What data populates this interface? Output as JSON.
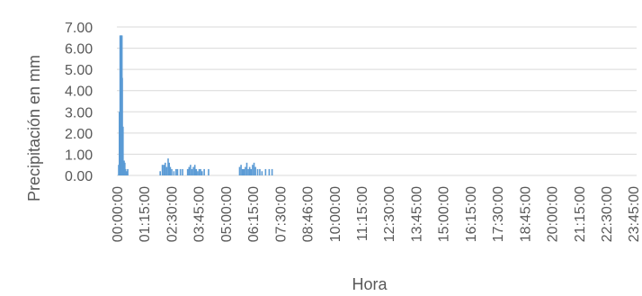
{
  "chart_data": {
    "type": "bar",
    "xlabel": "Hora",
    "ylabel": "Precipitación en mm",
    "ylim": [
      0,
      7
    ],
    "grid": true,
    "y_ticks": [
      "0.00",
      "1.00",
      "2.00",
      "3.00",
      "4.00",
      "5.00",
      "6.00",
      "7.00"
    ],
    "x_ticks": [
      "00:00:00",
      "01:15:00",
      "02:30:00",
      "03:45:00",
      "05:00:00",
      "06:15:00",
      "07:30:00",
      "08:46:00",
      "10:00:00",
      "11:15:00",
      "12:30:00",
      "13:45:00",
      "15:00:00",
      "16:15:00",
      "17:30:00",
      "18:45:00",
      "20:00:00",
      "21:15:00",
      "22:30:00",
      "23:45:00"
    ],
    "x_range_minutes": [
      0,
      1440
    ],
    "x_unit": "minutes since 00:00:00",
    "series": [
      {
        "color": "#5b9bd5",
        "points": [
          {
            "x": 5,
            "y": 0.5
          },
          {
            "x": 7,
            "y": 3.0
          },
          {
            "x": 8,
            "y": 2.3
          },
          {
            "x": 9,
            "y": 6.6
          },
          {
            "x": 10,
            "y": 6.6
          },
          {
            "x": 11,
            "y": 6.6
          },
          {
            "x": 12,
            "y": 6.6
          },
          {
            "x": 13,
            "y": 6.6
          },
          {
            "x": 14,
            "y": 6.6
          },
          {
            "x": 15,
            "y": 4.6
          },
          {
            "x": 17,
            "y": 2.3
          },
          {
            "x": 20,
            "y": 0.7
          },
          {
            "x": 22,
            "y": 0.6
          },
          {
            "x": 24,
            "y": 0.3
          },
          {
            "x": 27,
            "y": 0.2
          },
          {
            "x": 30,
            "y": 0.3
          },
          {
            "x": 120,
            "y": 0.2
          },
          {
            "x": 126,
            "y": 0.5
          },
          {
            "x": 130,
            "y": 0.5
          },
          {
            "x": 134,
            "y": 0.6
          },
          {
            "x": 138,
            "y": 0.4
          },
          {
            "x": 142,
            "y": 0.8
          },
          {
            "x": 145,
            "y": 0.6
          },
          {
            "x": 148,
            "y": 0.4
          },
          {
            "x": 152,
            "y": 0.3
          },
          {
            "x": 158,
            "y": 0.2
          },
          {
            "x": 164,
            "y": 0.3
          },
          {
            "x": 168,
            "y": 0.3
          },
          {
            "x": 176,
            "y": 0.3
          },
          {
            "x": 182,
            "y": 0.3
          },
          {
            "x": 196,
            "y": 0.3
          },
          {
            "x": 200,
            "y": 0.4
          },
          {
            "x": 204,
            "y": 0.5
          },
          {
            "x": 208,
            "y": 0.3
          },
          {
            "x": 212,
            "y": 0.4
          },
          {
            "x": 216,
            "y": 0.5
          },
          {
            "x": 220,
            "y": 0.3
          },
          {
            "x": 224,
            "y": 0.2
          },
          {
            "x": 228,
            "y": 0.3
          },
          {
            "x": 232,
            "y": 0.3
          },
          {
            "x": 236,
            "y": 0.2
          },
          {
            "x": 242,
            "y": 0.3
          },
          {
            "x": 254,
            "y": 0.3
          },
          {
            "x": 340,
            "y": 0.4
          },
          {
            "x": 344,
            "y": 0.5
          },
          {
            "x": 348,
            "y": 0.3
          },
          {
            "x": 352,
            "y": 0.3
          },
          {
            "x": 356,
            "y": 0.4
          },
          {
            "x": 360,
            "y": 0.6
          },
          {
            "x": 364,
            "y": 0.3
          },
          {
            "x": 368,
            "y": 0.4
          },
          {
            "x": 372,
            "y": 0.3
          },
          {
            "x": 376,
            "y": 0.5
          },
          {
            "x": 380,
            "y": 0.6
          },
          {
            "x": 384,
            "y": 0.4
          },
          {
            "x": 390,
            "y": 0.3
          },
          {
            "x": 396,
            "y": 0.3
          },
          {
            "x": 402,
            "y": 0.2
          },
          {
            "x": 412,
            "y": 0.3
          },
          {
            "x": 422,
            "y": 0.3
          },
          {
            "x": 430,
            "y": 0.3
          }
        ]
      }
    ]
  }
}
